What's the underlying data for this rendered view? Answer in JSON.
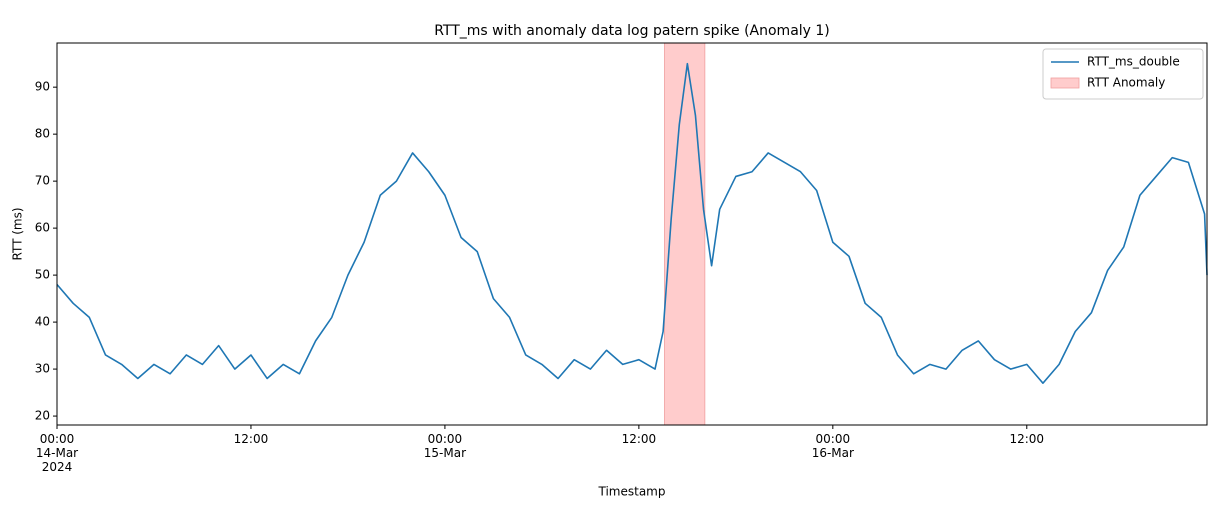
{
  "chart_data": {
    "type": "line",
    "title": "RTT_ms with anomaly data log patern spike (Anomaly 1)",
    "x_label": "Timestamp",
    "y_label": "RTT (ms)",
    "x": [
      "2024-03-14 00:00",
      "2024-03-14 01:00",
      "2024-03-14 02:00",
      "2024-03-14 03:00",
      "2024-03-14 04:00",
      "2024-03-14 05:00",
      "2024-03-14 06:00",
      "2024-03-14 07:00",
      "2024-03-14 08:00",
      "2024-03-14 09:00",
      "2024-03-14 10:00",
      "2024-03-14 11:00",
      "2024-03-14 12:00",
      "2024-03-14 13:00",
      "2024-03-14 14:00",
      "2024-03-14 15:00",
      "2024-03-14 16:00",
      "2024-03-14 17:00",
      "2024-03-14 18:00",
      "2024-03-14 19:00",
      "2024-03-14 20:00",
      "2024-03-14 21:00",
      "2024-03-14 22:00",
      "2024-03-14 23:00",
      "2024-03-15 00:00",
      "2024-03-15 01:00",
      "2024-03-15 02:00",
      "2024-03-15 03:00",
      "2024-03-15 04:00",
      "2024-03-15 05:00",
      "2024-03-15 06:00",
      "2024-03-15 07:00",
      "2024-03-15 08:00",
      "2024-03-15 09:00",
      "2024-03-15 10:00",
      "2024-03-15 11:00",
      "2024-03-15 12:00",
      "2024-03-15 13:00",
      "2024-03-15 13:30",
      "2024-03-15 14:00",
      "2024-03-15 14:30",
      "2024-03-15 15:00",
      "2024-03-15 15:30",
      "2024-03-15 16:00",
      "2024-03-15 16:30",
      "2024-03-15 17:00",
      "2024-03-15 18:00",
      "2024-03-15 19:00",
      "2024-03-15 20:00",
      "2024-03-15 21:00",
      "2024-03-15 22:00",
      "2024-03-15 23:00",
      "2024-03-16 00:00",
      "2024-03-16 01:00",
      "2024-03-16 02:00",
      "2024-03-16 03:00",
      "2024-03-16 04:00",
      "2024-03-16 05:00",
      "2024-03-16 06:00",
      "2024-03-16 07:00",
      "2024-03-16 08:00",
      "2024-03-16 09:00",
      "2024-03-16 10:00",
      "2024-03-16 11:00",
      "2024-03-16 12:00",
      "2024-03-16 13:00",
      "2024-03-16 14:00",
      "2024-03-16 15:00",
      "2024-03-16 16:00",
      "2024-03-16 17:00",
      "2024-03-16 18:00",
      "2024-03-16 19:00",
      "2024-03-16 20:00",
      "2024-03-16 21:00",
      "2024-03-16 22:00",
      "2024-03-16 23:00",
      "2024-03-16 23:09"
    ],
    "series": [
      {
        "name": "RTT_ms_double",
        "color": "#1f77b4",
        "values": [
          48,
          44,
          41,
          33,
          31,
          28,
          31,
          29,
          33,
          31,
          35,
          30,
          33,
          28,
          31,
          29,
          36,
          41,
          50,
          57,
          67,
          70,
          76,
          72,
          67,
          58,
          55,
          45,
          41,
          33,
          31,
          28,
          32,
          30,
          34,
          31,
          32,
          30,
          38,
          62,
          82,
          95,
          84,
          64,
          52,
          64,
          71,
          72,
          76,
          74,
          72,
          68,
          57,
          54,
          44,
          41,
          33,
          29,
          31,
          30,
          34,
          36,
          32,
          30,
          31,
          27,
          31,
          38,
          42,
          51,
          56,
          67,
          71,
          75,
          74,
          63,
          50
        ]
      }
    ],
    "spans": [
      {
        "name": "RTT Anomaly",
        "color": "#ffcccc",
        "x": [
          "2024-03-15 13:35",
          "2024-03-15 16:05"
        ]
      }
    ],
    "xlim": [
      "2024-03-14 00:00",
      "2024-03-16 23:09"
    ],
    "xticks": [
      {
        "value": "2024-03-14 00:00",
        "label": "00:00\n14-Mar\n2024"
      },
      {
        "value": "2024-03-14 12:00",
        "label": "12:00"
      },
      {
        "value": "2024-03-15 00:00",
        "label": "00:00\n15-Mar"
      },
      {
        "value": "2024-03-15 12:00",
        "label": "12:00"
      },
      {
        "value": "2024-03-16 00:00",
        "label": "00:00\n16-Mar"
      },
      {
        "value": "2024-03-16 12:00",
        "label": "12:00"
      }
    ],
    "ylim": [
      18.1,
      99.4
    ],
    "yticks": [
      20,
      30,
      40,
      50,
      60,
      70,
      80,
      90
    ],
    "grid": false,
    "legend": "upper right"
  }
}
